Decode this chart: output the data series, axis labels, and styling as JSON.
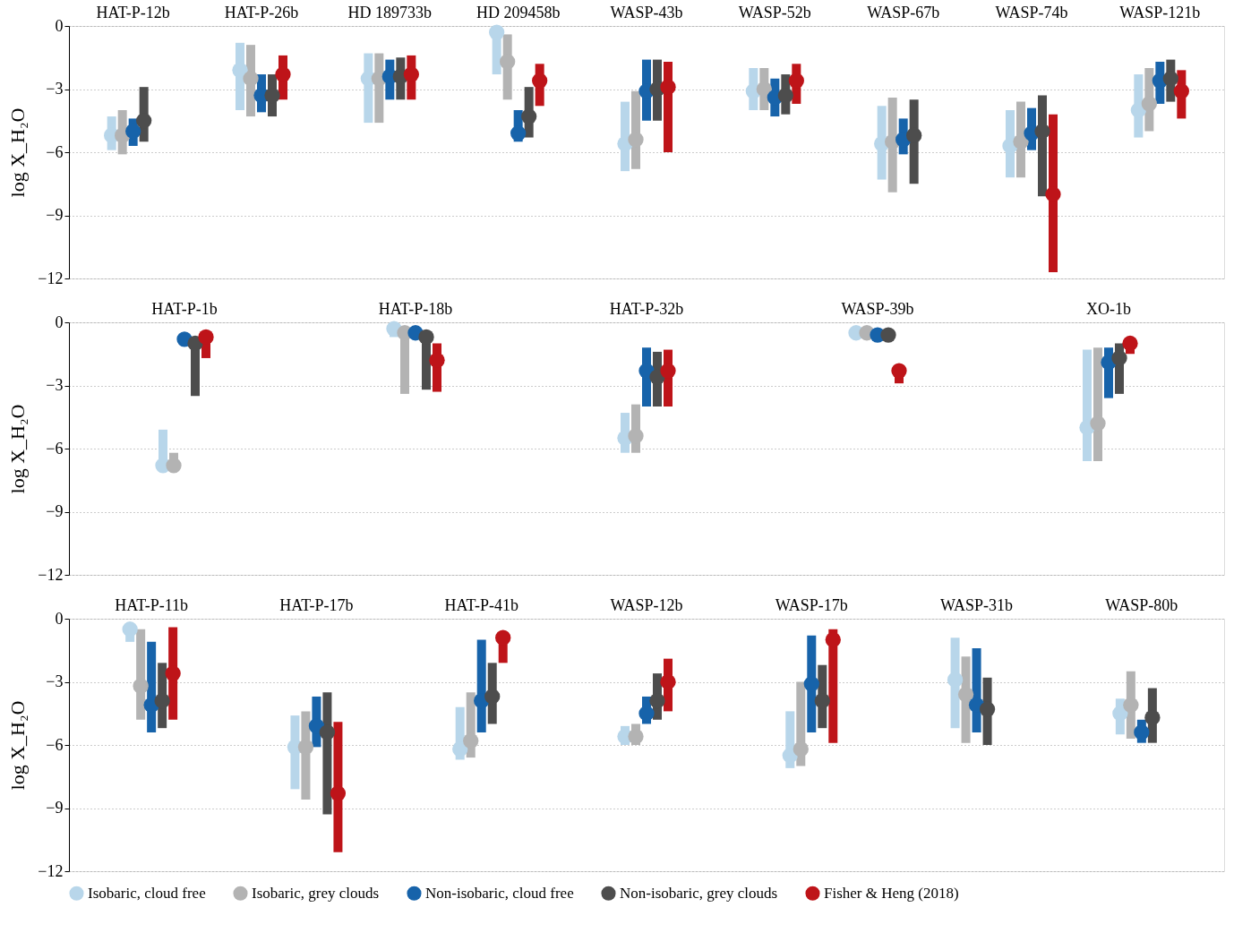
{
  "chart_data": [
    {
      "type": "scatter",
      "ylabel": "log X_H₂O",
      "ylim": [
        -12,
        0
      ],
      "yticks": [
        0,
        -3,
        -6,
        -9,
        -12
      ],
      "grid": "y",
      "marker": "circle",
      "categories": [
        "HAT-P-12b",
        "HAT-P-26b",
        "HD 189733b",
        "HD 209458b",
        "WASP-43b",
        "WASP-52b",
        "WASP-67b",
        "WASP-74b",
        "WASP-121b"
      ],
      "series": [
        {
          "color": "#b8d6ea",
          "values": [
            -5.2,
            -2.1,
            -2.5,
            -0.3,
            -5.6,
            -3.1,
            -5.6,
            -5.7,
            -4.0
          ],
          "errors": [
            [
              -5.9,
              -4.3
            ],
            [
              -4.0,
              -0.8
            ],
            [
              -4.6,
              -1.3
            ],
            [
              -2.3,
              -0.3
            ],
            [
              -6.9,
              -3.6
            ],
            [
              -4.0,
              -2.0
            ],
            [
              -7.3,
              -3.8
            ],
            [
              -7.2,
              -4.0
            ],
            [
              -5.3,
              -2.3
            ]
          ]
        },
        {
          "color": "#b3b3b3",
          "values": [
            -5.2,
            -2.5,
            -2.5,
            -1.7,
            -5.4,
            -3.0,
            -5.5,
            -5.5,
            -3.7
          ],
          "errors": [
            [
              -6.1,
              -4.0
            ],
            [
              -4.3,
              -0.9
            ],
            [
              -4.6,
              -1.3
            ],
            [
              -3.5,
              -0.4
            ],
            [
              -6.8,
              -3.1
            ],
            [
              -4.0,
              -2.0
            ],
            [
              -7.9,
              -3.4
            ],
            [
              -7.2,
              -3.6
            ],
            [
              -5.0,
              -2.0
            ]
          ]
        },
        {
          "color": "#1763aa",
          "values": [
            -5.0,
            -3.3,
            -2.4,
            -5.1,
            -3.1,
            -3.4,
            -5.4,
            -5.1,
            -2.6
          ],
          "errors": [
            [
              -5.7,
              -4.4
            ],
            [
              -4.1,
              -2.3
            ],
            [
              -3.5,
              -1.6
            ],
            [
              -5.5,
              -4.0
            ],
            [
              -4.5,
              -1.6
            ],
            [
              -4.3,
              -2.5
            ],
            [
              -6.1,
              -4.4
            ],
            [
              -5.9,
              -3.9
            ],
            [
              -3.7,
              -1.7
            ]
          ]
        },
        {
          "color": "#4d4d4d",
          "values": [
            -4.5,
            -3.3,
            -2.4,
            -4.3,
            -3.0,
            -3.3,
            -5.2,
            -5.0,
            -2.5
          ],
          "errors": [
            [
              -5.5,
              -2.9
            ],
            [
              -4.3,
              -2.3
            ],
            [
              -3.5,
              -1.5
            ],
            [
              -5.3,
              -2.9
            ],
            [
              -4.5,
              -1.6
            ],
            [
              -4.2,
              -2.3
            ],
            [
              -7.5,
              -3.5
            ],
            [
              -8.1,
              -3.3
            ],
            [
              -3.6,
              -1.6
            ]
          ]
        },
        {
          "color": "#be1419",
          "values": [
            null,
            -2.3,
            -2.3,
            -2.6,
            -2.9,
            -2.6,
            null,
            -8.0,
            -3.1
          ],
          "errors": [
            null,
            [
              -3.5,
              -1.4
            ],
            [
              -3.5,
              -1.4
            ],
            [
              -3.8,
              -1.8
            ],
            [
              -6.0,
              -1.7
            ],
            [
              -3.7,
              -1.8
            ],
            null,
            [
              -11.7,
              -4.2
            ],
            [
              -4.4,
              -2.1
            ]
          ]
        }
      ]
    },
    {
      "type": "scatter",
      "ylabel": "log X_H₂O",
      "ylim": [
        -12,
        0
      ],
      "yticks": [
        0,
        -3,
        -6,
        -9,
        -12
      ],
      "grid": "y",
      "marker": "circle",
      "categories": [
        "HAT-P-1b",
        "HAT-P-18b",
        "HAT-P-32b",
        "WASP-39b",
        "XO-1b"
      ],
      "series": [
        {
          "color": "#b8d6ea",
          "values": [
            -6.8,
            -0.3,
            -5.5,
            -0.5,
            -5.0
          ],
          "errors": [
            [
              -6.8,
              -5.1
            ],
            [
              -0.7,
              -0.3
            ],
            [
              -6.2,
              -4.3
            ],
            null,
            [
              -6.6,
              -1.3
            ]
          ]
        },
        {
          "color": "#b3b3b3",
          "values": [
            -6.8,
            -0.5,
            -5.4,
            -0.5,
            -4.8
          ],
          "errors": [
            [
              -6.8,
              -6.2
            ],
            [
              -3.4,
              -0.5
            ],
            [
              -6.2,
              -3.9
            ],
            null,
            [
              -6.6,
              -1.2
            ]
          ]
        },
        {
          "color": "#1763aa",
          "values": [
            -0.8,
            -0.5,
            -2.3,
            -0.6,
            -1.9
          ],
          "errors": [
            null,
            null,
            [
              -4.0,
              -1.2
            ],
            null,
            [
              -3.6,
              -1.2
            ]
          ]
        },
        {
          "color": "#4d4d4d",
          "values": [
            -1.0,
            -0.7,
            -2.6,
            -0.6,
            -1.7
          ],
          "errors": [
            [
              -3.5,
              -1.0
            ],
            [
              -3.2,
              -0.7
            ],
            [
              -4.0,
              -1.4
            ],
            null,
            [
              -3.4,
              -1.0
            ]
          ]
        },
        {
          "color": "#be1419",
          "values": [
            -0.7,
            -1.8,
            -2.3,
            -2.3,
            -1.0
          ],
          "errors": [
            [
              -1.7,
              -0.7
            ],
            [
              -3.3,
              -1.0
            ],
            [
              -4.0,
              -1.3
            ],
            [
              -2.9,
              -2.0
            ],
            [
              -1.5,
              -1.0
            ]
          ]
        }
      ]
    },
    {
      "type": "scatter",
      "ylabel": "log X_H₂O",
      "ylim": [
        -12,
        0
      ],
      "yticks": [
        0,
        -3,
        -6,
        -9,
        -12
      ],
      "grid": "y",
      "marker": "circle",
      "legend": "bottom",
      "categories": [
        "HAT-P-11b",
        "HAT-P-17b",
        "HAT-P-41b",
        "WASP-12b",
        "WASP-17b",
        "WASP-31b",
        "WASP-80b"
      ],
      "series": [
        {
          "name": "Isobaric, cloud free",
          "color": "#b8d6ea",
          "values": [
            -0.5,
            -6.1,
            -6.2,
            -5.6,
            -6.5,
            -2.9,
            -4.5
          ],
          "errors": [
            [
              -1.1,
              -0.5
            ],
            [
              -8.1,
              -4.6
            ],
            [
              -6.7,
              -4.2
            ],
            [
              -6.0,
              -5.1
            ],
            [
              -7.1,
              -4.4
            ],
            [
              -5.2,
              -0.9
            ],
            [
              -5.5,
              -3.8
            ]
          ]
        },
        {
          "name": "Isobaric, grey clouds",
          "color": "#b3b3b3",
          "values": [
            -3.2,
            -6.1,
            -5.8,
            -5.6,
            -6.2,
            -3.6,
            -4.1
          ],
          "errors": [
            [
              -4.8,
              -0.5
            ],
            [
              -8.6,
              -4.4
            ],
            [
              -6.6,
              -3.5
            ],
            [
              -6.0,
              -5.0
            ],
            [
              -7.0,
              -3.0
            ],
            [
              -5.9,
              -1.8
            ],
            [
              -5.7,
              -2.5
            ]
          ]
        },
        {
          "name": "Non-isobaric, cloud free",
          "color": "#1763aa",
          "values": [
            -4.1,
            -5.1,
            -3.9,
            -4.5,
            -3.1,
            -4.1,
            -5.4
          ],
          "errors": [
            [
              -5.4,
              -1.1
            ],
            [
              -6.1,
              -3.7
            ],
            [
              -5.4,
              -1.0
            ],
            [
              -5.0,
              -3.7
            ],
            [
              -5.4,
              -0.8
            ],
            [
              -5.4,
              -1.4
            ],
            [
              -5.9,
              -4.8
            ]
          ]
        },
        {
          "name": "Non-isobaric, grey clouds",
          "color": "#4d4d4d",
          "values": [
            -3.9,
            -5.4,
            -3.7,
            -3.9,
            -3.9,
            -4.3,
            -4.7
          ],
          "errors": [
            [
              -5.2,
              -2.1
            ],
            [
              -9.3,
              -3.5
            ],
            [
              -5.0,
              -2.1
            ],
            [
              -4.8,
              -2.6
            ],
            [
              -5.2,
              -2.2
            ],
            [
              -6.0,
              -2.8
            ],
            [
              -5.9,
              -3.3
            ]
          ]
        },
        {
          "name": "Fisher & Heng (2018)",
          "color": "#be1419",
          "values": [
            -2.6,
            -8.3,
            -0.9,
            -3.0,
            -1.0,
            null,
            null
          ],
          "errors": [
            [
              -4.8,
              -0.4
            ],
            [
              -11.1,
              -4.9
            ],
            [
              -2.1,
              -0.9
            ],
            [
              -4.4,
              -1.9
            ],
            [
              -5.9,
              -0.5
            ],
            null,
            null
          ]
        }
      ]
    }
  ]
}
